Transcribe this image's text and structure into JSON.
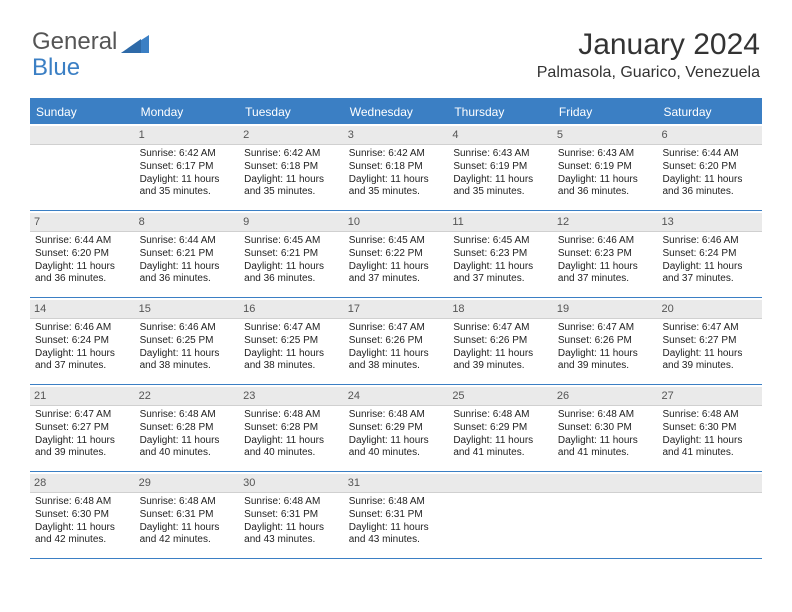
{
  "logo": {
    "part1": "General",
    "part2": "Blue"
  },
  "header": {
    "title": "January 2024",
    "location": "Palmasola, Guarico, Venezuela"
  },
  "colors": {
    "accent": "#3b7fc4",
    "dayHeaderBg": "#eaeaea",
    "text": "#222222",
    "background": "#ffffff"
  },
  "weekdays": [
    "Sunday",
    "Monday",
    "Tuesday",
    "Wednesday",
    "Thursday",
    "Friday",
    "Saturday"
  ],
  "days": [
    {
      "n": 1,
      "sr": "6:42 AM",
      "ss": "6:17 PM",
      "dl": "11 hours and 35 minutes."
    },
    {
      "n": 2,
      "sr": "6:42 AM",
      "ss": "6:18 PM",
      "dl": "11 hours and 35 minutes."
    },
    {
      "n": 3,
      "sr": "6:42 AM",
      "ss": "6:18 PM",
      "dl": "11 hours and 35 minutes."
    },
    {
      "n": 4,
      "sr": "6:43 AM",
      "ss": "6:19 PM",
      "dl": "11 hours and 35 minutes."
    },
    {
      "n": 5,
      "sr": "6:43 AM",
      "ss": "6:19 PM",
      "dl": "11 hours and 36 minutes."
    },
    {
      "n": 6,
      "sr": "6:44 AM",
      "ss": "6:20 PM",
      "dl": "11 hours and 36 minutes."
    },
    {
      "n": 7,
      "sr": "6:44 AM",
      "ss": "6:20 PM",
      "dl": "11 hours and 36 minutes."
    },
    {
      "n": 8,
      "sr": "6:44 AM",
      "ss": "6:21 PM",
      "dl": "11 hours and 36 minutes."
    },
    {
      "n": 9,
      "sr": "6:45 AM",
      "ss": "6:21 PM",
      "dl": "11 hours and 36 minutes."
    },
    {
      "n": 10,
      "sr": "6:45 AM",
      "ss": "6:22 PM",
      "dl": "11 hours and 37 minutes."
    },
    {
      "n": 11,
      "sr": "6:45 AM",
      "ss": "6:23 PM",
      "dl": "11 hours and 37 minutes."
    },
    {
      "n": 12,
      "sr": "6:46 AM",
      "ss": "6:23 PM",
      "dl": "11 hours and 37 minutes."
    },
    {
      "n": 13,
      "sr": "6:46 AM",
      "ss": "6:24 PM",
      "dl": "11 hours and 37 minutes."
    },
    {
      "n": 14,
      "sr": "6:46 AM",
      "ss": "6:24 PM",
      "dl": "11 hours and 37 minutes."
    },
    {
      "n": 15,
      "sr": "6:46 AM",
      "ss": "6:25 PM",
      "dl": "11 hours and 38 minutes."
    },
    {
      "n": 16,
      "sr": "6:47 AM",
      "ss": "6:25 PM",
      "dl": "11 hours and 38 minutes."
    },
    {
      "n": 17,
      "sr": "6:47 AM",
      "ss": "6:26 PM",
      "dl": "11 hours and 38 minutes."
    },
    {
      "n": 18,
      "sr": "6:47 AM",
      "ss": "6:26 PM",
      "dl": "11 hours and 39 minutes."
    },
    {
      "n": 19,
      "sr": "6:47 AM",
      "ss": "6:26 PM",
      "dl": "11 hours and 39 minutes."
    },
    {
      "n": 20,
      "sr": "6:47 AM",
      "ss": "6:27 PM",
      "dl": "11 hours and 39 minutes."
    },
    {
      "n": 21,
      "sr": "6:47 AM",
      "ss": "6:27 PM",
      "dl": "11 hours and 39 minutes."
    },
    {
      "n": 22,
      "sr": "6:48 AM",
      "ss": "6:28 PM",
      "dl": "11 hours and 40 minutes."
    },
    {
      "n": 23,
      "sr": "6:48 AM",
      "ss": "6:28 PM",
      "dl": "11 hours and 40 minutes."
    },
    {
      "n": 24,
      "sr": "6:48 AM",
      "ss": "6:29 PM",
      "dl": "11 hours and 40 minutes."
    },
    {
      "n": 25,
      "sr": "6:48 AM",
      "ss": "6:29 PM",
      "dl": "11 hours and 41 minutes."
    },
    {
      "n": 26,
      "sr": "6:48 AM",
      "ss": "6:30 PM",
      "dl": "11 hours and 41 minutes."
    },
    {
      "n": 27,
      "sr": "6:48 AM",
      "ss": "6:30 PM",
      "dl": "11 hours and 41 minutes."
    },
    {
      "n": 28,
      "sr": "6:48 AM",
      "ss": "6:30 PM",
      "dl": "11 hours and 42 minutes."
    },
    {
      "n": 29,
      "sr": "6:48 AM",
      "ss": "6:31 PM",
      "dl": "11 hours and 42 minutes."
    },
    {
      "n": 30,
      "sr": "6:48 AM",
      "ss": "6:31 PM",
      "dl": "11 hours and 43 minutes."
    },
    {
      "n": 31,
      "sr": "6:48 AM",
      "ss": "6:31 PM",
      "dl": "11 hours and 43 minutes."
    }
  ],
  "labels": {
    "sunrise": "Sunrise:",
    "sunset": "Sunset:",
    "daylight": "Daylight:"
  },
  "layout": {
    "startWeekday": 1,
    "totalCells": 35
  }
}
